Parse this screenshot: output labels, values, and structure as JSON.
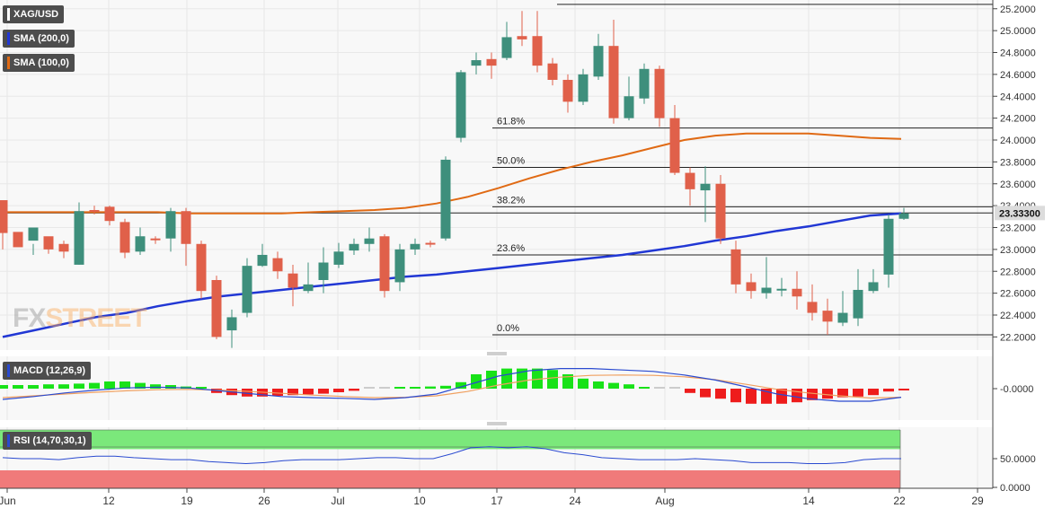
{
  "legend": {
    "symbol": "XAG/USD",
    "sma200": "SMA (200,0)",
    "sma100": "SMA (100,0)",
    "macd": "MACD (12,26,9)",
    "rsi": "RSI (14,70,30,1)"
  },
  "watermark": {
    "part1": "FX",
    "part2": "STREET"
  },
  "colors": {
    "bull": "#3e8f7c",
    "bear": "#e0604a",
    "sma200": "#2137d4",
    "sma100": "#e06a14",
    "macd_pos": "#18e218",
    "macd_neg": "#ee1c1c",
    "macd_line": "#2a4ad0",
    "signal_line": "#f0a060",
    "rsi_line": "#2a4ad0",
    "rsi_overbought": "#7be87b",
    "rsi_oversold": "#f07a7a",
    "tag_bg": "#4d4d4d"
  },
  "chart_data": [
    {
      "type": "candlestick",
      "title": "XAG/USD",
      "y_ticks": [
        "25.2000",
        "25.0000",
        "24.8000",
        "24.6000",
        "24.4000",
        "24.2000",
        "24.0000",
        "23.8000",
        "23.6000",
        "23.4000",
        "23.2000",
        "23.0000",
        "22.8000",
        "22.6000",
        "22.4000",
        "22.2000"
      ],
      "y_range": [
        22.08,
        25.28
      ],
      "last_price": "23.33300",
      "x_labels": [
        "Jun",
        "12",
        "19",
        "26",
        "Jul",
        "10",
        "17",
        "24",
        "Aug",
        "14",
        "22",
        "29"
      ],
      "fibonacci": [
        {
          "label": "0.0%",
          "value": 22.22
        },
        {
          "label": "23.6%",
          "value": 22.95
        },
        {
          "label": "38.2%",
          "value": 23.39
        },
        {
          "label": "50.0%",
          "value": 23.75
        },
        {
          "label": "61.8%",
          "value": 24.11
        }
      ],
      "horizontal_levels": [
        25.24,
        23.333
      ],
      "candles": [
        [
          23.45,
          23.15,
          23.28,
          23.0
        ],
        [
          23.16,
          23.02,
          23.13,
          23.06
        ],
        [
          23.08,
          23.2,
          23.05,
          22.95
        ],
        [
          23.12,
          23.0,
          23.1,
          22.96
        ],
        [
          23.05,
          22.98,
          23.08,
          22.92
        ],
        [
          22.86,
          23.35,
          23.43,
          22.86
        ],
        [
          23.36,
          23.35,
          23.4,
          23.32
        ],
        [
          23.39,
          23.26,
          23.4,
          23.22
        ],
        [
          23.25,
          22.97,
          23.28,
          22.92
        ],
        [
          22.98,
          23.12,
          23.2,
          22.95
        ],
        [
          23.1,
          23.09,
          23.12,
          23.05
        ],
        [
          23.1,
          23.35,
          23.38,
          22.98
        ],
        [
          23.35,
          23.05,
          23.38,
          22.85
        ],
        [
          23.05,
          22.62,
          23.08,
          22.55
        ],
        [
          22.72,
          22.2,
          22.76,
          22.18
        ],
        [
          22.26,
          22.38,
          22.45,
          22.1
        ],
        [
          22.42,
          22.85,
          22.92,
          22.38
        ],
        [
          22.85,
          22.95,
          23.05,
          22.84
        ],
        [
          22.92,
          22.8,
          22.98,
          22.73
        ],
        [
          22.78,
          22.65,
          22.86,
          22.48
        ],
        [
          22.62,
          22.68,
          22.88,
          22.6
        ],
        [
          22.72,
          22.88,
          23.02,
          22.6
        ],
        [
          22.86,
          22.98,
          23.06,
          22.83
        ],
        [
          22.99,
          23.05,
          23.1,
          22.95
        ],
        [
          23.05,
          23.1,
          23.2,
          22.98
        ],
        [
          23.12,
          22.62,
          23.14,
          22.56
        ],
        [
          22.7,
          23.0,
          23.05,
          22.62
        ],
        [
          23.0,
          23.05,
          23.1,
          22.95
        ],
        [
          23.06,
          23.05,
          23.08,
          23.02
        ],
        [
          23.1,
          23.82,
          23.85,
          23.08
        ],
        [
          24.02,
          24.62,
          24.64,
          23.98
        ],
        [
          24.68,
          24.73,
          24.8,
          24.6
        ],
        [
          24.74,
          24.68,
          24.8,
          24.56
        ],
        [
          24.75,
          24.94,
          25.08,
          24.73
        ],
        [
          24.95,
          24.92,
          25.18,
          24.86
        ],
        [
          24.95,
          24.68,
          25.18,
          24.62
        ],
        [
          24.7,
          24.55,
          24.75,
          24.5
        ],
        [
          24.55,
          24.35,
          24.6,
          24.25
        ],
        [
          24.35,
          24.6,
          24.65,
          24.32
        ],
        [
          24.58,
          24.86,
          24.97,
          24.55
        ],
        [
          24.86,
          24.2,
          25.1,
          24.15
        ],
        [
          24.2,
          24.4,
          24.58,
          24.18
        ],
        [
          24.38,
          24.65,
          24.7,
          24.33
        ],
        [
          24.65,
          24.2,
          24.68,
          24.12
        ],
        [
          24.2,
          23.7,
          24.32,
          23.68
        ],
        [
          23.7,
          23.55,
          23.75,
          23.4
        ],
        [
          23.54,
          23.6,
          23.76,
          23.25
        ],
        [
          23.6,
          23.1,
          23.68,
          23.05
        ],
        [
          23.0,
          22.68,
          23.08,
          22.6
        ],
        [
          22.7,
          22.62,
          22.78,
          22.55
        ],
        [
          22.6,
          22.65,
          22.93,
          22.55
        ],
        [
          22.64,
          22.64,
          22.74,
          22.57
        ],
        [
          22.64,
          22.57,
          22.8,
          22.45
        ],
        [
          22.52,
          22.42,
          22.68,
          22.35
        ],
        [
          22.44,
          22.34,
          22.55,
          22.22
        ],
        [
          22.33,
          22.42,
          22.62,
          22.3
        ],
        [
          22.37,
          22.63,
          22.82,
          22.3
        ],
        [
          22.62,
          22.7,
          22.82,
          22.6
        ],
        [
          22.77,
          23.28,
          23.32,
          22.65
        ],
        [
          23.28,
          23.33,
          23.38,
          23.27
        ]
      ],
      "sma200": [
        22.2,
        22.26,
        22.32,
        22.38,
        22.42,
        22.48,
        22.53,
        22.57,
        22.6,
        22.63,
        22.66,
        22.69,
        22.72,
        22.75,
        22.77,
        22.8,
        22.83,
        22.86,
        22.89,
        22.92,
        22.95,
        22.99,
        23.03,
        23.08,
        23.12,
        23.17,
        23.21,
        23.26,
        23.31,
        23.33
      ],
      "sma100": [
        23.34,
        23.34,
        23.34,
        23.34,
        23.34,
        23.34,
        23.33,
        23.33,
        23.33,
        23.33,
        23.34,
        23.35,
        23.36,
        23.38,
        23.42,
        23.48,
        23.56,
        23.65,
        23.73,
        23.8,
        23.86,
        23.93,
        24.0,
        24.04,
        24.06,
        24.06,
        24.06,
        24.04,
        24.02,
        24.01
      ]
    },
    {
      "type": "bar",
      "title": "MACD (12,26,9)",
      "y_ticks": [
        "-0.0000"
      ],
      "histogram": [
        0.05,
        0.05,
        0.05,
        0.06,
        0.06,
        0.07,
        0.08,
        0.1,
        0.1,
        0.08,
        0.06,
        0.05,
        0.03,
        0.01,
        -0.06,
        -0.09,
        -0.11,
        -0.11,
        -0.1,
        -0.09,
        -0.08,
        -0.07,
        -0.05,
        -0.03,
        0,
        0,
        0.02,
        0.02,
        0.03,
        0.04,
        0.09,
        0.2,
        0.25,
        0.28,
        0.28,
        0.28,
        0.26,
        0.2,
        0.14,
        0.1,
        0.08,
        0.06,
        0.02,
        0,
        0,
        -0.06,
        -0.12,
        -0.14,
        -0.19,
        -0.21,
        -0.21,
        -0.21,
        -0.19,
        -0.16,
        -0.14,
        -0.12,
        -0.11,
        -0.09,
        -0.04,
        -0.01
      ],
      "macd_line": [
        -0.3,
        -0.22,
        -0.12,
        -0.04,
        0.02,
        0.04,
        0.02,
        -0.06,
        -0.14,
        -0.22,
        -0.25,
        -0.27,
        -0.3,
        -0.25,
        -0.15,
        0.1,
        0.35,
        0.5,
        0.56,
        0.56,
        0.52,
        0.48,
        0.38,
        0.24,
        0.05,
        -0.15,
        -0.28,
        -0.35,
        -0.35,
        -0.24
      ],
      "signal_line": [
        -0.25,
        -0.2,
        -0.15,
        -0.1,
        -0.06,
        -0.03,
        -0.02,
        -0.04,
        -0.08,
        -0.13,
        -0.18,
        -0.22,
        -0.25,
        -0.24,
        -0.2,
        -0.08,
        0.1,
        0.24,
        0.32,
        0.37,
        0.38,
        0.37,
        0.33,
        0.25,
        0.12,
        -0.02,
        -0.12,
        -0.2,
        -0.26,
        -0.24
      ]
    },
    {
      "type": "line",
      "title": "RSI (14,70,30,1)",
      "y_ticks": [
        "50.0000",
        "0.0000"
      ],
      "overbought": 70,
      "oversold": 30,
      "rsi": [
        52,
        50,
        50,
        48,
        52,
        55,
        55,
        52,
        50,
        48,
        48,
        44,
        42,
        40,
        42,
        46,
        48,
        48,
        48,
        50,
        52,
        52,
        50,
        50,
        60,
        72,
        74,
        72,
        74,
        70,
        62,
        58,
        52,
        50,
        48,
        48,
        48,
        50,
        48,
        46,
        42,
        42,
        42,
        40,
        40,
        42,
        48,
        50,
        50
      ]
    }
  ]
}
